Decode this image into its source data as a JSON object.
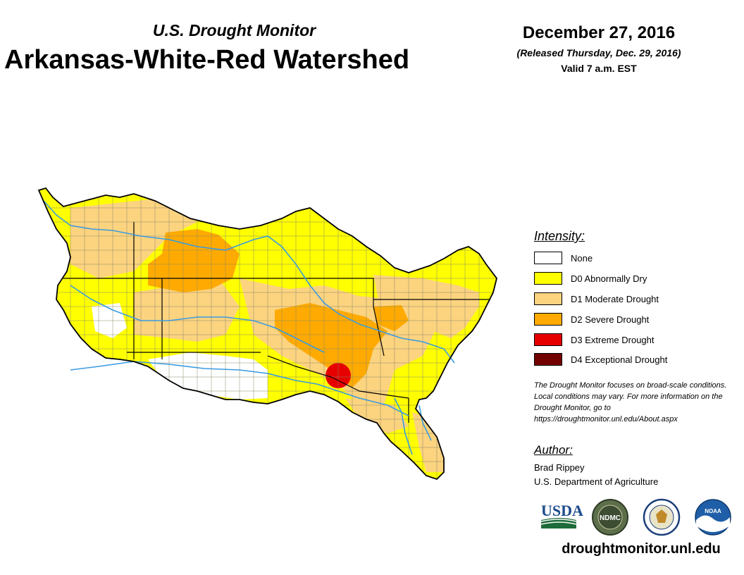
{
  "header": {
    "subtitle": "U.S. Drought Monitor",
    "title": "Arkansas-White-Red Watershed",
    "date": "December 27, 2016",
    "released": "(Released Thursday, Dec. 29, 2016)",
    "valid": "Valid 7 a.m. EST"
  },
  "legend": {
    "heading": "Intensity:",
    "items": [
      {
        "label": "None",
        "color": "#ffffff"
      },
      {
        "label": "D0 Abnormally Dry",
        "color": "#ffff00"
      },
      {
        "label": "D1 Moderate Drought",
        "color": "#fcd37f"
      },
      {
        "label": "D2 Severe Drought",
        "color": "#ffaa00"
      },
      {
        "label": "D3 Extreme Drought",
        "color": "#e60000"
      },
      {
        "label": "D4 Exceptional Drought",
        "color": "#730000"
      }
    ]
  },
  "note": "The Drought Monitor focuses on broad-scale conditions. Local conditions may vary. For more information on the Drought Monitor, go to https://droughtmonitor.unl.edu/About.aspx",
  "author": {
    "heading": "Author:",
    "name": "Brad Rippey",
    "organization": "U.S. Department of Agriculture"
  },
  "logos": {
    "usda": "USDA",
    "ndmc": "NDMC",
    "noaa": "NOAA"
  },
  "map_colors": {
    "none": "#ffffff",
    "d0": "#ffff00",
    "d1": "#fcd37f",
    "d2": "#ffaa00",
    "d3": "#e60000",
    "river": "#3a9be0",
    "boundary": "#000000",
    "county": "#8a8a6a"
  },
  "website": "droughtmonitor.unl.edu"
}
